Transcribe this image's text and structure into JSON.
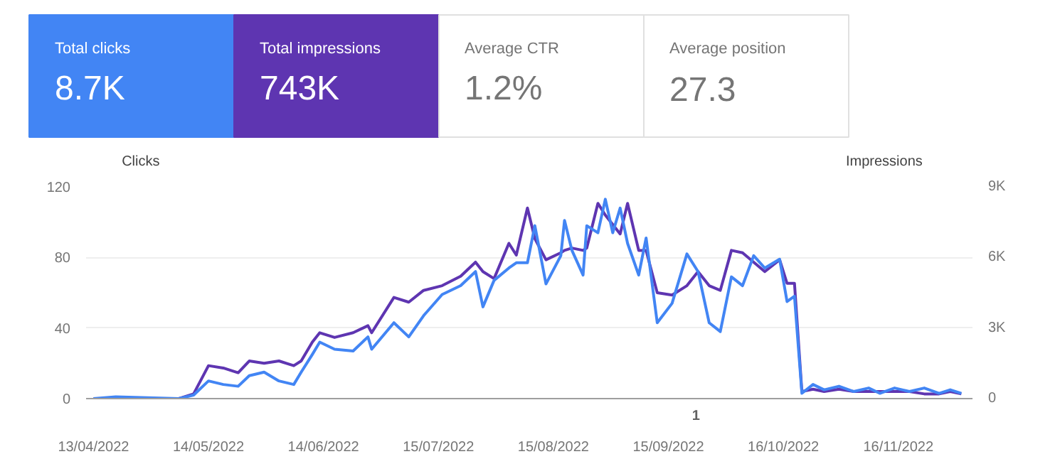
{
  "chart_data": [
    {
      "type": "other",
      "annotations": [
        "Total clicks",
        "8.7K",
        "Total impressions",
        "743K",
        "Average CTR",
        "1.2%",
        "Average position",
        "27.3"
      ],
      "colors": [
        "#4285f4",
        "#5e35b1",
        "#ffffff",
        "#ffffff"
      ]
    },
    {
      "type": "line",
      "ylabel": "Clicks",
      "y2label": "Impressions",
      "x": [
        "2022-04-13",
        "2022-04-19",
        "2022-05-06",
        "2022-05-10",
        "2022-05-14",
        "2022-05-18",
        "2022-05-22",
        "2022-05-25",
        "2022-05-29",
        "2022-06-02",
        "2022-06-06",
        "2022-06-08",
        "2022-06-11",
        "2022-06-13",
        "2022-06-17",
        "2022-06-22",
        "2022-06-26",
        "2022-06-27",
        "2022-07-03",
        "2022-07-07",
        "2022-07-11",
        "2022-07-16",
        "2022-07-21",
        "2022-07-25",
        "2022-07-27",
        "2022-07-30",
        "2022-08-03",
        "2022-08-05",
        "2022-08-08",
        "2022-08-10",
        "2022-08-13",
        "2022-08-17",
        "2022-08-18",
        "2022-08-20",
        "2022-08-23",
        "2022-08-24",
        "2022-08-27",
        "2022-08-29",
        "2022-08-31",
        "2022-09-02",
        "2022-09-04",
        "2022-09-07",
        "2022-09-09",
        "2022-09-12",
        "2022-09-16",
        "2022-09-20",
        "2022-09-23",
        "2022-09-26",
        "2022-09-29",
        "2022-10-02",
        "2022-10-05",
        "2022-10-08",
        "2022-10-11",
        "2022-10-15",
        "2022-10-17",
        "2022-10-19",
        "2022-10-21",
        "2022-10-24",
        "2022-10-27",
        "2022-10-31",
        "2022-11-04",
        "2022-11-08",
        "2022-11-11",
        "2022-11-15",
        "2022-11-19",
        "2022-11-23",
        "2022-11-27",
        "2022-11-30",
        "2022-12-03"
      ],
      "series": [
        {
          "color": "#5e35b1",
          "axis": "y2",
          "values": [
            0,
            0,
            0,
            200,
            1400,
            1300,
            1100,
            1600,
            1500,
            1600,
            1400,
            1600,
            2400,
            2800,
            2600,
            2800,
            3100,
            2800,
            4300,
            4100,
            4600,
            4800,
            5200,
            5800,
            5400,
            5100,
            6600,
            6100,
            8100,
            6800,
            5900,
            6200,
            6300,
            6400,
            6300,
            6400,
            8300,
            7800,
            7400,
            7000,
            8300,
            6300,
            6300,
            4500,
            4400,
            4800,
            5400,
            4800,
            4600,
            6300,
            6200,
            5800,
            5400,
            5900,
            4900,
            4900,
            300,
            400,
            300,
            400,
            300,
            300,
            300,
            300,
            300,
            200,
            200,
            300,
            200
          ]
        },
        {
          "color": "#4285f4",
          "values": [
            0,
            1,
            0,
            2,
            10,
            8,
            7,
            13,
            15,
            10,
            8,
            15,
            25,
            32,
            28,
            27,
            35,
            28,
            43,
            35,
            47,
            59,
            64,
            72,
            52,
            67,
            74,
            77,
            77,
            98,
            65,
            81,
            101,
            84,
            70,
            98,
            94,
            113,
            94,
            108,
            88,
            70,
            91,
            43,
            54,
            82,
            72,
            43,
            38,
            69,
            64,
            81,
            74,
            79,
            55,
            58,
            3,
            8,
            5,
            7,
            4,
            6,
            3,
            6,
            4,
            6,
            3,
            5,
            3
          ]
        }
      ],
      "xlim": [
        "2022-04-11",
        "2022-12-06"
      ],
      "xticks": [
        {
          "value": "2022-04-13",
          "label": "13/04/2022"
        },
        {
          "value": "2022-05-14",
          "label": "14/05/2022"
        },
        {
          "value": "2022-06-14",
          "label": "14/06/2022"
        },
        {
          "value": "2022-07-15",
          "label": "15/07/2022"
        },
        {
          "value": "2022-08-15",
          "label": "15/08/2022"
        },
        {
          "value": "2022-09-15",
          "label": "15/09/2022"
        },
        {
          "value": "2022-10-16",
          "label": "16/10/2022"
        },
        {
          "value": "2022-11-16",
          "label": "16/11/2022"
        }
      ],
      "ylim": [
        0,
        120
      ],
      "yticks": [
        0,
        40,
        80,
        120
      ],
      "y2lim": [
        0,
        9000
      ],
      "y2ticks": [
        0,
        {
          "value": 3000,
          "label": "3K"
        },
        {
          "value": 6000,
          "label": "6K"
        },
        {
          "value": 9000,
          "label": "9K"
        }
      ],
      "grid": "y",
      "line_style": "solid",
      "annotations": [
        "1"
      ]
    }
  ]
}
